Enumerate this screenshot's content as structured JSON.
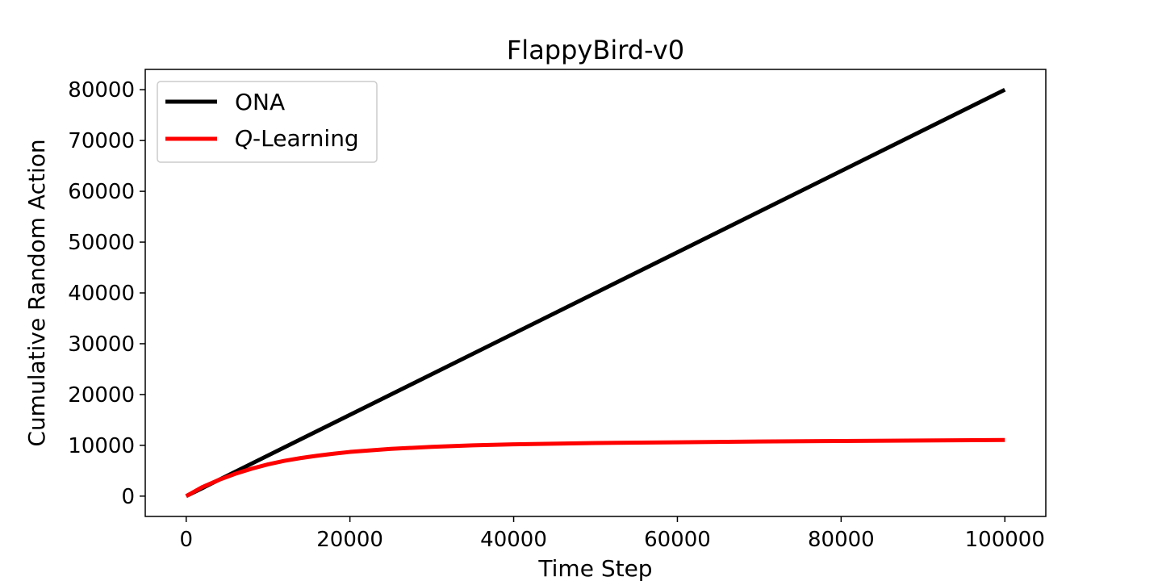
{
  "chart_data": {
    "type": "line",
    "title": "FlappyBird-v0",
    "xlabel": "Time Step",
    "ylabel": "Cumulative Random Action",
    "xlim": [
      -5000,
      105000
    ],
    "ylim": [
      -4000,
      84000
    ],
    "xticks": [
      0,
      20000,
      40000,
      60000,
      80000,
      100000
    ],
    "yticks": [
      0,
      10000,
      20000,
      30000,
      40000,
      50000,
      60000,
      70000,
      80000
    ],
    "grid": false,
    "legend_position": "top-left",
    "series": [
      {
        "name": "ONA",
        "color": "#000000",
        "x": [
          0,
          100000
        ],
        "y": [
          0,
          80000
        ]
      },
      {
        "name": "Q-Learning",
        "name_italic_part": "Q",
        "name_rest": "-Learning",
        "color": "#ff0000",
        "x": [
          0,
          2000,
          4000,
          6000,
          8000,
          10000,
          12000,
          14000,
          16000,
          18000,
          20000,
          25000,
          30000,
          35000,
          40000,
          50000,
          60000,
          70000,
          80000,
          90000,
          100000
        ],
        "y": [
          0,
          1800,
          3200,
          4400,
          5400,
          6250,
          6950,
          7500,
          7950,
          8350,
          8700,
          9300,
          9700,
          10000,
          10200,
          10450,
          10600,
          10750,
          10850,
          10950,
          11050
        ]
      }
    ]
  }
}
